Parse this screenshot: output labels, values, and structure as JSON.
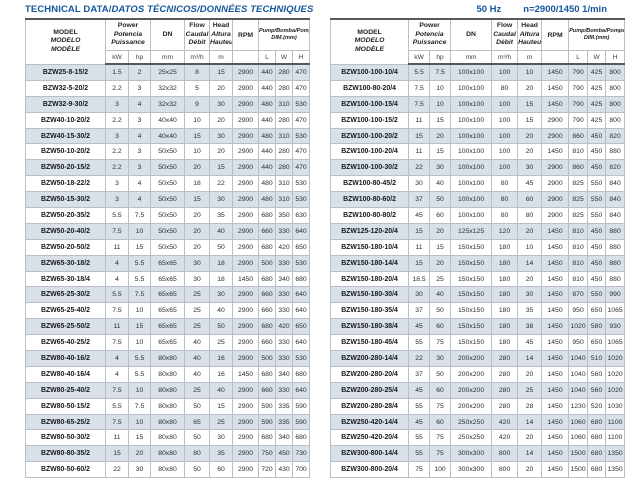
{
  "title": {
    "main": "TECHNICAL DATA/",
    "intl": "DATOS TÉCNICOS/DONNÉES TECHNIQUES"
  },
  "conditions": {
    "frequency": "50 Hz",
    "speed": "n=2900/1450 1/min"
  },
  "colors": {
    "accent_blue": "#15569c",
    "row_shade": "#d9e0e7",
    "grid_line": "#b9bfc6",
    "dark_border": "#54595e"
  },
  "table_header": {
    "model_lines": [
      "MODEL",
      "MODELO",
      "MODÈLE"
    ],
    "power_lines": [
      "Power",
      "Potencia",
      "Puissance"
    ],
    "flow_lines": [
      "Flow",
      "Caudal",
      "Débit"
    ],
    "head_lines": [
      "Head",
      "Altura",
      "Hauteur"
    ],
    "dn_label": "DN",
    "rpm_label": "RPM",
    "dim_lines": [
      "Pump/Bomba/Pompe",
      "DIM.(mm)"
    ],
    "units": {
      "kw": "kW",
      "hp": "hp",
      "dn": "mm",
      "flow": "m³/h",
      "head": "m",
      "l": "L",
      "w": "W",
      "h": "H"
    }
  },
  "tables": {
    "left": {
      "rows": [
        [
          "BZW25-8-15/2",
          "1.5",
          "2",
          "25x25",
          "8",
          "15",
          "2900",
          "440",
          "280",
          "470"
        ],
        [
          "BZW32-5-20/2",
          "2.2",
          "3",
          "32x32",
          "5",
          "20",
          "2900",
          "440",
          "280",
          "470"
        ],
        [
          "BZW32-9-30/2",
          "3",
          "4",
          "32x32",
          "9",
          "30",
          "2900",
          "480",
          "310",
          "530"
        ],
        [
          "BZW40-10-20/2",
          "2.2",
          "3",
          "40x40",
          "10",
          "20",
          "2900",
          "440",
          "280",
          "470"
        ],
        [
          "BZW40-15-30/2",
          "3",
          "4",
          "40x40",
          "15",
          "30",
          "2900",
          "480",
          "310",
          "530"
        ],
        [
          "BZW50-10-20/2",
          "2.2",
          "3",
          "50x50",
          "10",
          "20",
          "2900",
          "440",
          "280",
          "470"
        ],
        [
          "BZW50-20-15/2",
          "2.2",
          "3",
          "50x50",
          "20",
          "15",
          "2900",
          "440",
          "280",
          "470"
        ],
        [
          "BZW50-18-22/2",
          "3",
          "4",
          "50x50",
          "18",
          "22",
          "2900",
          "480",
          "310",
          "530"
        ],
        [
          "BZW50-15-30/2",
          "3",
          "4",
          "50x50",
          "15",
          "30",
          "2900",
          "480",
          "310",
          "530"
        ],
        [
          "BZW50-20-35/2",
          "5.5",
          "7.5",
          "50x50",
          "20",
          "35",
          "2900",
          "680",
          "350",
          "630"
        ],
        [
          "BZW50-20-40/2",
          "7.5",
          "10",
          "50x50",
          "20",
          "40",
          "2900",
          "660",
          "330",
          "640"
        ],
        [
          "BZW50-20-50/2",
          "11",
          "15",
          "50x50",
          "20",
          "50",
          "2900",
          "680",
          "420",
          "650"
        ],
        [
          "BZW65-30-18/2",
          "4",
          "5.5",
          "65x65",
          "30",
          "18",
          "2900",
          "500",
          "330",
          "530"
        ],
        [
          "BZW65-30-18/4",
          "4",
          "5.5",
          "65x65",
          "30",
          "18",
          "1450",
          "680",
          "340",
          "680"
        ],
        [
          "BZW65-25-30/2",
          "5.5",
          "7.5",
          "65x65",
          "25",
          "30",
          "2900",
          "660",
          "330",
          "640"
        ],
        [
          "BZW65-25-40/2",
          "7.5",
          "10",
          "65x65",
          "25",
          "40",
          "2900",
          "660",
          "330",
          "640"
        ],
        [
          "BZW65-25-50/2",
          "11",
          "15",
          "65x65",
          "25",
          "50",
          "2900",
          "680",
          "420",
          "650"
        ],
        [
          "BZW65-40-25/2",
          "7.5",
          "10",
          "65x65",
          "40",
          "25",
          "2900",
          "660",
          "330",
          "640"
        ],
        [
          "BZW80-40-16/2",
          "4",
          "5.5",
          "80x80",
          "40",
          "16",
          "2900",
          "500",
          "330",
          "530"
        ],
        [
          "BZW80-40-16/4",
          "4",
          "5.5",
          "80x80",
          "40",
          "16",
          "1450",
          "680",
          "340",
          "680"
        ],
        [
          "BZW80-25-40/2",
          "7.5",
          "10",
          "80x80",
          "25",
          "40",
          "2900",
          "660",
          "330",
          "640"
        ],
        [
          "BZW80-50-15/2",
          "5.5",
          "7.5",
          "80x80",
          "50",
          "15",
          "2900",
          "590",
          "335",
          "590"
        ],
        [
          "BZW80-65-25/2",
          "7.5",
          "10",
          "80x80",
          "65",
          "25",
          "2900",
          "590",
          "335",
          "590"
        ],
        [
          "BZW80-50-30/2",
          "11",
          "15",
          "80x80",
          "50",
          "30",
          "2900",
          "680",
          "340",
          "680"
        ],
        [
          "BZW80-80-35/2",
          "15",
          "20",
          "80x80",
          "80",
          "35",
          "2900",
          "750",
          "450",
          "730"
        ],
        [
          "BZW80-50-60/2",
          "22",
          "30",
          "80x80",
          "50",
          "60",
          "2900",
          "720",
          "430",
          "700"
        ]
      ]
    },
    "right": {
      "rows": [
        [
          "BZW100-100-10/4",
          "5.5",
          "7.5",
          "100x100",
          "100",
          "10",
          "1450",
          "790",
          "425",
          "800"
        ],
        [
          "BZW100-80-20/4",
          "7.5",
          "10",
          "100x100",
          "80",
          "20",
          "1450",
          "790",
          "425",
          "800"
        ],
        [
          "BZW100-100-15/4",
          "7.5",
          "10",
          "100x100",
          "100",
          "15",
          "1450",
          "790",
          "425",
          "800"
        ],
        [
          "BZW100-100-15/2",
          "11",
          "15",
          "100x100",
          "100",
          "15",
          "2900",
          "790",
          "425",
          "800"
        ],
        [
          "BZW100-100-20/2",
          "15",
          "20",
          "100x100",
          "100",
          "20",
          "2900",
          "860",
          "450",
          "820"
        ],
        [
          "BZW100-100-20/4",
          "11",
          "15",
          "100x100",
          "100",
          "20",
          "1450",
          "810",
          "450",
          "880"
        ],
        [
          "BZW100-100-30/2",
          "22",
          "30",
          "100x100",
          "100",
          "30",
          "2900",
          "860",
          "450",
          "820"
        ],
        [
          "BZW100-80-45/2",
          "30",
          "40",
          "100x100",
          "80",
          "45",
          "2900",
          "825",
          "550",
          "840"
        ],
        [
          "BZW100-80-60/2",
          "37",
          "50",
          "100x100",
          "80",
          "60",
          "2900",
          "825",
          "550",
          "840"
        ],
        [
          "BZW100-80-80/2",
          "45",
          "60",
          "100x100",
          "80",
          "80",
          "2900",
          "825",
          "550",
          "840"
        ],
        [
          "BZW125-120-20/4",
          "15",
          "20",
          "125x125",
          "120",
          "20",
          "1450",
          "810",
          "450",
          "880"
        ],
        [
          "BZW150-180-10/4",
          "11",
          "15",
          "150x150",
          "180",
          "10",
          "1450",
          "810",
          "450",
          "880"
        ],
        [
          "BZW150-180-14/4",
          "15",
          "20",
          "150x150",
          "180",
          "14",
          "1450",
          "810",
          "450",
          "880"
        ],
        [
          "BZW150-180-20/4",
          "18.5",
          "25",
          "150x150",
          "180",
          "20",
          "1450",
          "810",
          "450",
          "880"
        ],
        [
          "BZW150-180-30/4",
          "30",
          "40",
          "150x150",
          "180",
          "30",
          "1450",
          "870",
          "550",
          "990"
        ],
        [
          "BZW150-180-35/4",
          "37",
          "50",
          "150x150",
          "180",
          "35",
          "1450",
          "950",
          "650",
          "1065"
        ],
        [
          "BZW150-180-38/4",
          "45",
          "60",
          "150x150",
          "180",
          "38",
          "1450",
          "1020",
          "580",
          "930"
        ],
        [
          "BZW150-180-45/4",
          "55",
          "75",
          "150x150",
          "180",
          "45",
          "1450",
          "950",
          "650",
          "1065"
        ],
        [
          "BZW200-280-14/4",
          "22",
          "30",
          "200x200",
          "280",
          "14",
          "1450",
          "1040",
          "510",
          "1020"
        ],
        [
          "BZW200-280-20/4",
          "37",
          "50",
          "200x200",
          "280",
          "20",
          "1450",
          "1040",
          "560",
          "1020"
        ],
        [
          "BZW200-280-25/4",
          "45",
          "60",
          "200x200",
          "280",
          "25",
          "1450",
          "1040",
          "560",
          "1020"
        ],
        [
          "BZW200-280-28/4",
          "55",
          "75",
          "200x200",
          "280",
          "28",
          "1450",
          "1230",
          "520",
          "1030"
        ],
        [
          "BZW250-420-14/4",
          "45",
          "60",
          "250x250",
          "420",
          "14",
          "1450",
          "1060",
          "680",
          "1100"
        ],
        [
          "BZW250-420-20/4",
          "55",
          "75",
          "250x250",
          "420",
          "20",
          "1450",
          "1060",
          "680",
          "1100"
        ],
        [
          "BZW300-800-14/4",
          "55",
          "75",
          "300x300",
          "800",
          "14",
          "1450",
          "1500",
          "680",
          "1350"
        ],
        [
          "BZW300-800-20/4",
          "75",
          "100",
          "300x300",
          "800",
          "20",
          "1450",
          "1500",
          "680",
          "1350"
        ]
      ]
    }
  }
}
